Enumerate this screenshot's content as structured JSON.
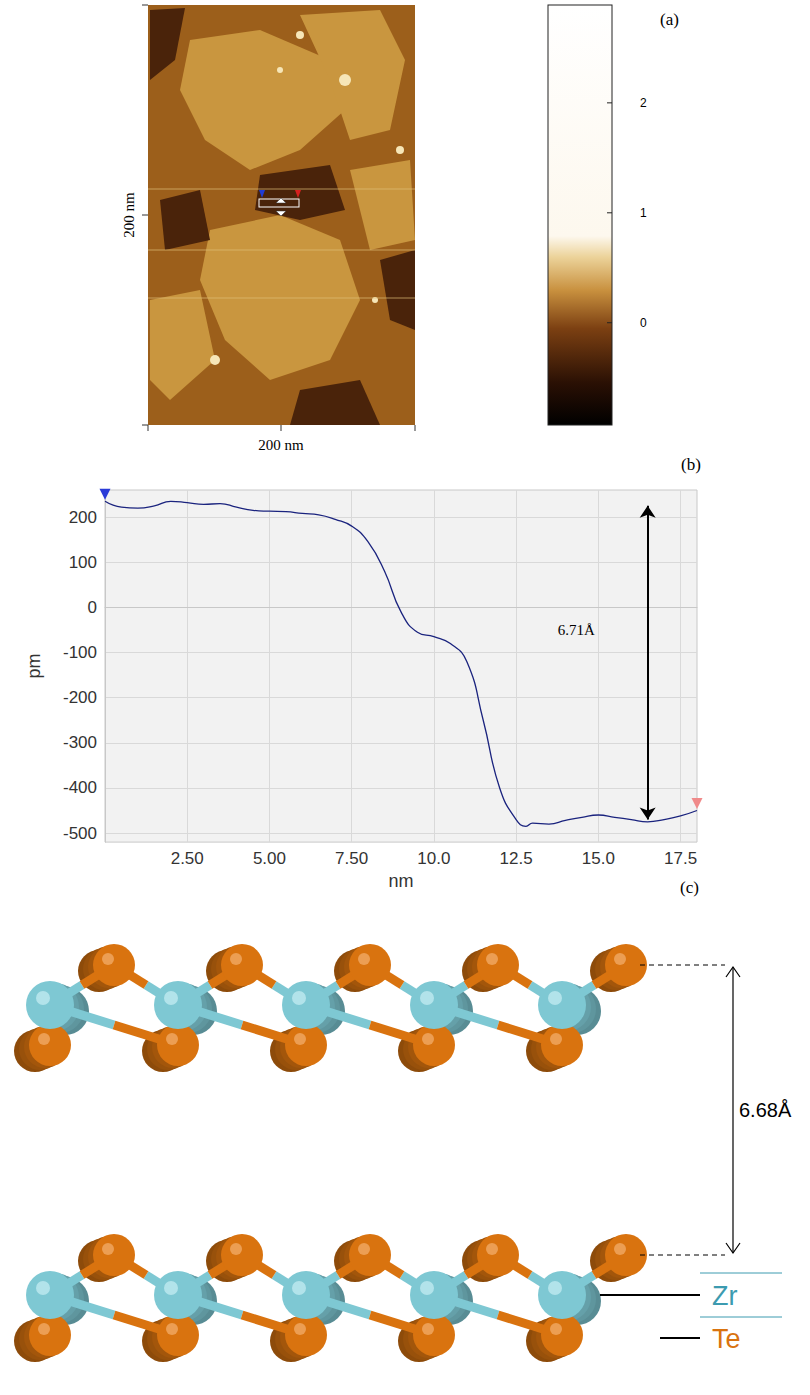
{
  "panel_a": {
    "label": "(a)",
    "x_label": "200 nm",
    "y_label": "200 nm",
    "colorbar": {
      "range": [
        -0.93,
        2.89
      ],
      "ticks": [
        0,
        1,
        2
      ]
    }
  },
  "chart_data": {
    "type": "line",
    "title": "(b)",
    "x_label": "nm",
    "y_label": "pm",
    "x": [
      0,
      0.5,
      1,
      1.5,
      2,
      2.5,
      3,
      3.5,
      4,
      4.5,
      5,
      5.5,
      6,
      6.5,
      7,
      7.5,
      8,
      8.5,
      9,
      9.5,
      10,
      10.5,
      11,
      11.5,
      12,
      12.5,
      12.8,
      13,
      13.5,
      14,
      14.5,
      15,
      15.5,
      16,
      16.5,
      17,
      17.5,
      18
    ],
    "values": [
      235,
      222,
      220,
      225,
      235,
      232,
      228,
      230,
      222,
      215,
      213,
      212,
      208,
      205,
      195,
      180,
      145,
      80,
      -10,
      -55,
      -65,
      -80,
      -120,
      -250,
      -400,
      -470,
      -485,
      -478,
      -480,
      -472,
      -465,
      -460,
      -465,
      -470,
      -475,
      -470,
      -462,
      -450
    ],
    "color": "#1a237e",
    "xlim": [
      0,
      18
    ],
    "xticks": [
      {
        "value": 2.5,
        "label": "2.50"
      },
      {
        "value": 5,
        "label": "5.00"
      },
      {
        "value": 7.5,
        "label": "7.50"
      },
      {
        "value": 10,
        "label": "10.0"
      },
      {
        "value": 12.5,
        "label": "12.5"
      },
      {
        "value": 15,
        "label": "15.0"
      },
      {
        "value": 17.5,
        "label": "17.5"
      }
    ],
    "ylim": [
      -520,
      260
    ],
    "yticks": [
      -500,
      -400,
      -300,
      -200,
      -100,
      0,
      100,
      200
    ],
    "grid": true,
    "annotations": [
      {
        "text": "6.71Å",
        "x": 16.5,
        "y_from": 225,
        "y_to": -470
      }
    ]
  },
  "panel_c": {
    "label": "(c)",
    "spacing_label": "6.68Å",
    "atoms": [
      {
        "label": "Zr",
        "color": "#7ec8d3"
      },
      {
        "label": "Te",
        "color": "#d9730f"
      }
    ]
  }
}
